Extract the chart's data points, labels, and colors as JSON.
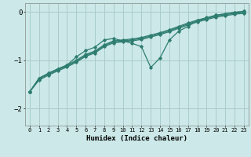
{
  "xlabel": "Humidex (Indice chaleur)",
  "background_color": "#cce8e8",
  "grid_color": "#aacccc",
  "line_color": "#2e7d70",
  "xlim": [
    -0.5,
    23.5
  ],
  "ylim": [
    -2.35,
    0.18
  ],
  "xticks": [
    0,
    1,
    2,
    3,
    4,
    5,
    6,
    7,
    8,
    9,
    10,
    11,
    12,
    13,
    14,
    15,
    16,
    17,
    18,
    19,
    20,
    21,
    22,
    23
  ],
  "yticks": [
    0,
    -1,
    -2
  ],
  "straight1_y": [
    -1.65,
    -1.37,
    -1.27,
    -1.18,
    -1.1,
    -1.0,
    -0.88,
    -0.81,
    -0.68,
    -0.6,
    -0.58,
    -0.56,
    -0.53,
    -0.48,
    -0.43,
    -0.37,
    -0.3,
    -0.23,
    -0.17,
    -0.12,
    -0.07,
    -0.04,
    -0.01,
    0.01
  ],
  "straight2_y": [
    -1.65,
    -1.39,
    -1.29,
    -1.2,
    -1.12,
    -1.02,
    -0.9,
    -0.83,
    -0.7,
    -0.62,
    -0.6,
    -0.58,
    -0.55,
    -0.5,
    -0.45,
    -0.39,
    -0.32,
    -0.25,
    -0.19,
    -0.14,
    -0.09,
    -0.06,
    -0.03,
    -0.01
  ],
  "straight3_y": [
    -1.65,
    -1.41,
    -1.31,
    -1.22,
    -1.14,
    -1.04,
    -0.92,
    -0.85,
    -0.72,
    -0.64,
    -0.62,
    -0.6,
    -0.57,
    -0.52,
    -0.47,
    -0.41,
    -0.34,
    -0.27,
    -0.21,
    -0.16,
    -0.11,
    -0.08,
    -0.05,
    -0.03
  ],
  "wiggly_y": [
    -1.65,
    -1.37,
    -1.27,
    -1.18,
    -1.1,
    -0.93,
    -0.8,
    -0.73,
    -0.58,
    -0.55,
    -0.6,
    -0.65,
    -0.72,
    -1.15,
    -0.95,
    -0.58,
    -0.4,
    -0.3,
    -0.18,
    -0.13,
    -0.07,
    -0.04,
    -0.01,
    0.01
  ]
}
